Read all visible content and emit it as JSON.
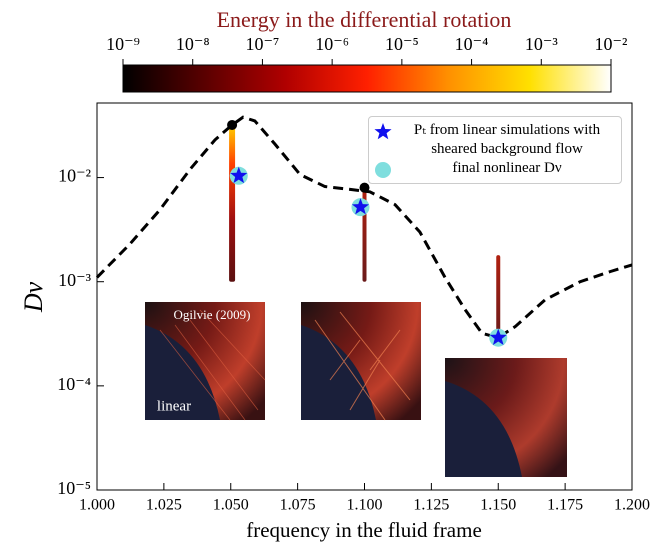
{
  "chart_data": {
    "type": "line",
    "title": "Energy in the differential rotation",
    "title_color": "#8b1a1a",
    "colorbar": {
      "lim": [
        1e-09,
        0.01
      ],
      "log": true,
      "ticks": [
        {
          "value": 1e-09,
          "label": "10⁻⁹"
        },
        {
          "value": 1e-08,
          "label": "10⁻⁸"
        },
        {
          "value": 1e-07,
          "label": "10⁻⁷"
        },
        {
          "value": 1e-06,
          "label": "10⁻⁶"
        },
        {
          "value": 1e-05,
          "label": "10⁻⁵"
        },
        {
          "value": 0.0001,
          "label": "10⁻⁴"
        },
        {
          "value": 0.001,
          "label": "10⁻³"
        },
        {
          "value": 0.01,
          "label": "10⁻²"
        }
      ],
      "colormap": [
        "#000000",
        "#5a0000",
        "#b00000",
        "#ff2000",
        "#ff9000",
        "#ffe000",
        "#ffffff"
      ]
    },
    "x_label": "frequency in the fluid frame",
    "y_label": "Dν",
    "xlim": [
      1.0,
      1.2
    ],
    "ylim": [
      1e-05,
      0.052
    ],
    "y_log": true,
    "xticks": [
      {
        "value": 1.0,
        "label": "1.000"
      },
      {
        "value": 1.025,
        "label": "1.025"
      },
      {
        "value": 1.05,
        "label": "1.050"
      },
      {
        "value": 1.075,
        "label": "1.075"
      },
      {
        "value": 1.1,
        "label": "1.100"
      },
      {
        "value": 1.125,
        "label": "1.125"
      },
      {
        "value": 1.15,
        "label": "1.150"
      },
      {
        "value": 1.175,
        "label": "1.175"
      },
      {
        "value": 1.2,
        "label": "1.200"
      }
    ],
    "yticks": [
      {
        "value": 1e-05,
        "label": "10⁻⁵"
      },
      {
        "value": 0.0001,
        "label": "10⁻⁴"
      },
      {
        "value": 0.001,
        "label": "10⁻³"
      },
      {
        "value": 0.01,
        "label": "10⁻²"
      }
    ],
    "series": [
      {
        "marker": "dashed-line",
        "color": "#000000",
        "x": [
          1.0,
          1.0123,
          1.0235,
          1.0348,
          1.0441,
          1.0505,
          1.0546,
          1.059,
          1.0665,
          1.0759,
          1.0852,
          1.0946,
          1.102,
          1.1114,
          1.1207,
          1.1301,
          1.1376,
          1.1439,
          1.1499,
          1.1563,
          1.1675,
          1.1806,
          1.1918,
          1.2
        ],
        "values": [
          0.0011,
          0.0023,
          0.0049,
          0.012,
          0.023,
          0.032,
          0.038,
          0.035,
          0.021,
          0.0107,
          0.0082,
          0.0077,
          0.0073,
          0.0055,
          0.003,
          0.0011,
          0.00054,
          0.00032,
          0.00029,
          0.00037,
          0.00067,
          0.001,
          0.00125,
          0.00145
        ]
      },
      {
        "marker": "dot",
        "color": "#000000",
        "x": [
          1.0505,
          1.1,
          1.15
        ],
        "values": [
          0.032,
          0.008,
          0.00029
        ]
      },
      {
        "marker": "circle",
        "name": "final nonlinear Dν",
        "color": "#7fdede",
        "x": [
          1.053,
          1.0985,
          1.15
        ],
        "values": [
          0.0104,
          0.0052,
          0.00029
        ]
      },
      {
        "marker": "star",
        "name": "Pₜ from linear simulations with sheared background flow",
        "color": "#1010ee",
        "x": [
          1.053,
          1.0985,
          1.15
        ],
        "values": [
          0.0104,
          0.0052,
          0.00029
        ]
      }
    ],
    "tracks": [
      {
        "x": 1.0505,
        "range": [
          0.001,
          0.032
        ]
      },
      {
        "x": 1.1,
        "range": [
          0.001,
          0.008
        ]
      },
      {
        "x": 1.15,
        "range": [
          0.00029,
          0.0018
        ]
      }
    ],
    "insets": {
      "first_caption": "Ogilvie (2009)",
      "first_label": "linear"
    }
  }
}
